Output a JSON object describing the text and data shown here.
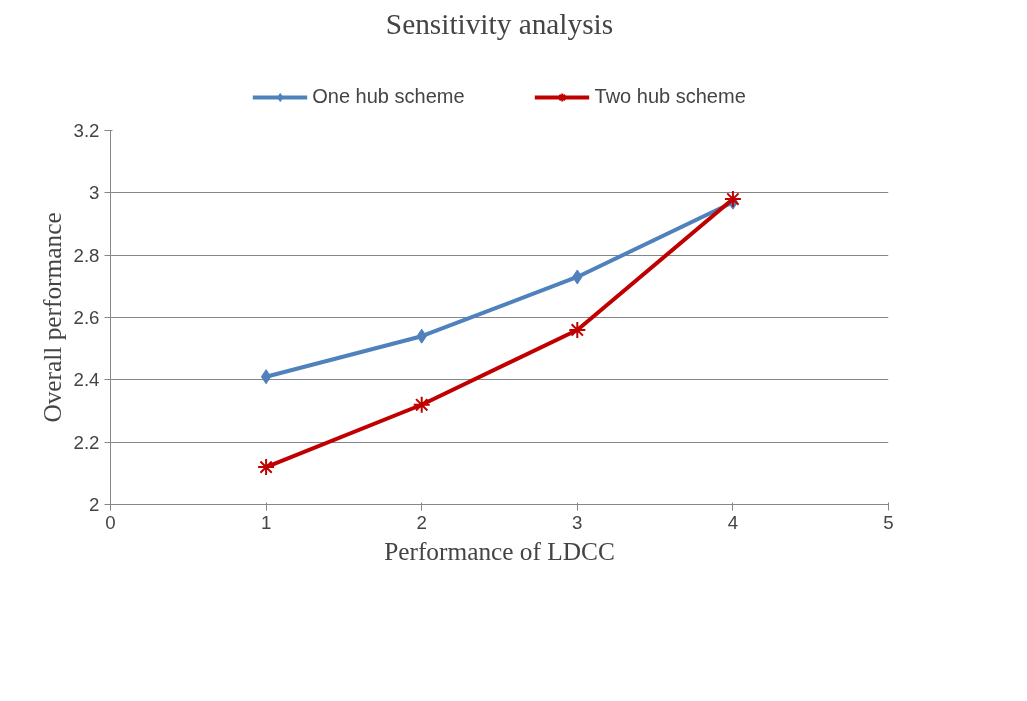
{
  "chart_data": {
    "type": "line",
    "title": "Sensitivity analysis",
    "xlabel": "Performance of LDCC",
    "ylabel": "Overall performance",
    "x": [
      1,
      2,
      3,
      4
    ],
    "series": [
      {
        "name": "One hub scheme",
        "color": "#4f81bd",
        "marker": "diamond",
        "values": [
          2.41,
          2.54,
          2.73,
          2.97
        ]
      },
      {
        "name": "Two hub scheme",
        "color": "#c00000",
        "marker": "cross",
        "values": [
          2.12,
          2.32,
          2.56,
          2.98
        ]
      }
    ],
    "xlim": [
      0,
      5
    ],
    "xticks": [
      0,
      1,
      2,
      3,
      4,
      5
    ],
    "ylim": [
      2,
      3.2
    ],
    "yticks": [
      2,
      2.2,
      2.4,
      2.6,
      2.8,
      3,
      3.2
    ],
    "grid": "y",
    "legend": "top",
    "line_style": "solid"
  }
}
